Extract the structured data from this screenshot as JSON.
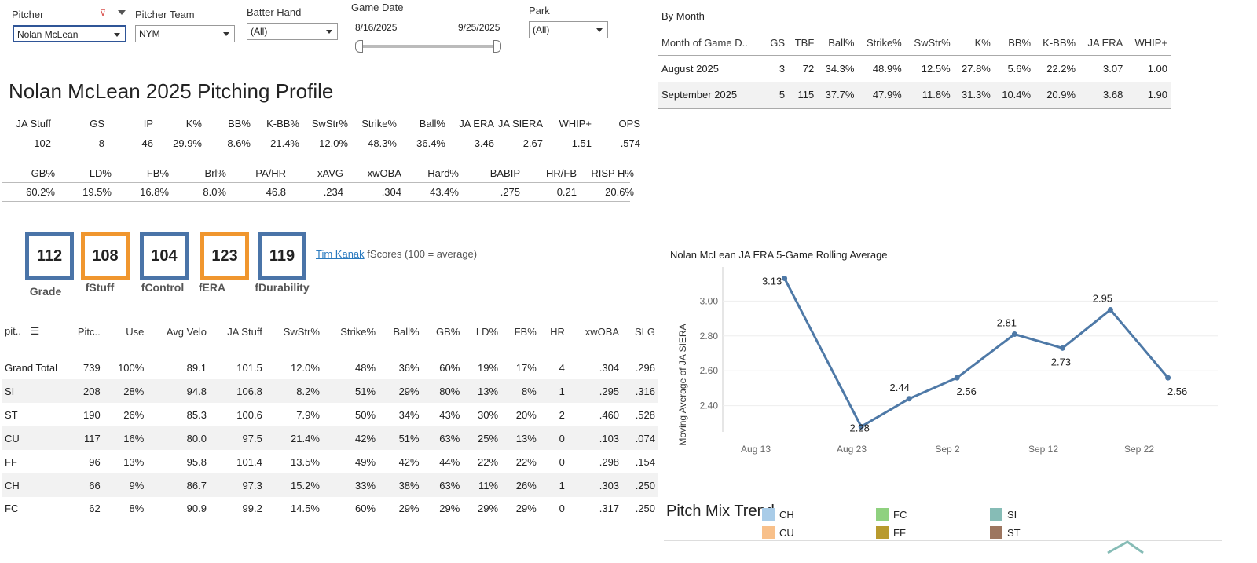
{
  "filters": {
    "pitcher_label": "Pitcher",
    "pitcher_value": "Nolan McLean",
    "team_label": "Pitcher Team",
    "team_value": "NYM",
    "batter_hand_label": "Batter Hand",
    "batter_hand_value": "(All)",
    "game_date_label": "Game Date",
    "date_start": "8/16/2025",
    "date_end": "9/25/2025",
    "park_label": "Park",
    "park_value": "(All)"
  },
  "page_title": "Nolan McLean 2025 Pitching Profile",
  "summary1": {
    "headers": [
      "JA Stuff",
      "GS",
      "IP",
      "K%",
      "BB%",
      "K-BB%",
      "SwStr%",
      "Strike%",
      "Ball%",
      "JA ERA",
      "JA SIERA",
      "WHIP+",
      "OPS"
    ],
    "values": [
      "102",
      "8",
      "46",
      "29.9%",
      "8.6%",
      "21.4%",
      "12.0%",
      "48.3%",
      "36.4%",
      "3.46",
      "2.67",
      "1.51",
      ".574"
    ]
  },
  "summary2": {
    "headers": [
      "GB%",
      "LD%",
      "FB%",
      "Brl%",
      "PA/HR",
      "xAVG",
      "xwOBA",
      "Hard%",
      "BABIP",
      "HR/FB",
      "RISP H%"
    ],
    "values": [
      "60.2%",
      "19.5%",
      "16.8%",
      "8.0%",
      "46.8",
      ".234",
      ".304",
      "43.4%",
      ".275",
      "0.21",
      "20.6%"
    ]
  },
  "scores": [
    {
      "value": "112",
      "label": "Grade"
    },
    {
      "value": "108",
      "label": "fStuff"
    },
    {
      "value": "104",
      "label": "fControl"
    },
    {
      "value": "123",
      "label": "fERA"
    },
    {
      "value": "119",
      "label": "fDurability"
    }
  ],
  "attribution": {
    "link": "Tim Kanak",
    "text": "fScores (100 = average)"
  },
  "pitch_table": {
    "headers": [
      "pit..",
      "Pitc..",
      "Use",
      "Avg Velo",
      "JA Stuff",
      "SwStr%",
      "Strike%",
      "Ball%",
      "GB%",
      "LD%",
      "FB%",
      "HR",
      "xwOBA",
      "SLG"
    ],
    "rows": [
      [
        "Grand Total",
        "739",
        "100%",
        "89.1",
        "101.5",
        "12.0%",
        "48%",
        "36%",
        "60%",
        "19%",
        "17%",
        "4",
        ".304",
        ".296"
      ],
      [
        "SI",
        "208",
        "28%",
        "94.8",
        "106.8",
        "8.2%",
        "51%",
        "29%",
        "80%",
        "13%",
        "8%",
        "1",
        ".295",
        ".316"
      ],
      [
        "ST",
        "190",
        "26%",
        "85.3",
        "100.6",
        "7.9%",
        "50%",
        "34%",
        "43%",
        "30%",
        "20%",
        "2",
        ".460",
        ".528"
      ],
      [
        "CU",
        "117",
        "16%",
        "80.0",
        "97.5",
        "21.4%",
        "42%",
        "51%",
        "63%",
        "25%",
        "13%",
        "0",
        ".103",
        ".074"
      ],
      [
        "FF",
        "96",
        "13%",
        "95.8",
        "101.4",
        "13.5%",
        "49%",
        "42%",
        "44%",
        "22%",
        "22%",
        "0",
        ".298",
        ".154"
      ],
      [
        "CH",
        "66",
        "9%",
        "86.7",
        "97.3",
        "15.2%",
        "33%",
        "38%",
        "63%",
        "11%",
        "26%",
        "1",
        ".303",
        ".250"
      ],
      [
        "FC",
        "62",
        "8%",
        "90.9",
        "99.2",
        "14.5%",
        "60%",
        "29%",
        "29%",
        "29%",
        "29%",
        "0",
        ".317",
        ".250"
      ]
    ]
  },
  "by_month": {
    "title": "By Month",
    "headers": [
      "Month of Game D..",
      "GS",
      "TBF",
      "Ball%",
      "Strike%",
      "SwStr%",
      "K%",
      "BB%",
      "K-BB%",
      "JA ERA",
      "WHIP+"
    ],
    "rows": [
      [
        "August 2025",
        "3",
        "72",
        "34.3%",
        "48.9%",
        "12.5%",
        "27.8%",
        "5.6%",
        "22.2%",
        "3.07",
        "1.00"
      ],
      [
        "September 2025",
        "5",
        "115",
        "37.7%",
        "47.9%",
        "11.8%",
        "31.3%",
        "10.4%",
        "20.9%",
        "3.68",
        "1.90"
      ]
    ]
  },
  "legend": {
    "title": "Pitch Mix Trend",
    "items": [
      {
        "label": "CH",
        "color": "#a9cce8"
      },
      {
        "label": "FC",
        "color": "#8fd17f"
      },
      {
        "label": "SI",
        "color": "#86bcb6"
      },
      {
        "label": "CU",
        "color": "#f8c08a"
      },
      {
        "label": "FF",
        "color": "#b89a2e"
      },
      {
        "label": "ST",
        "color": "#9d7660"
      }
    ]
  },
  "chart_data": {
    "type": "line",
    "title": "Nolan McLean JA ERA 5-Game Rolling Average",
    "ylabel": "Moving Average of JA SIERA",
    "xlabel": "",
    "x": [
      "Aug 16",
      "Aug 24",
      "Aug 29",
      "Sep 3",
      "Sep 9",
      "Sep 14",
      "Sep 19",
      "Sep 25"
    ],
    "values": [
      3.13,
      2.28,
      2.44,
      2.56,
      2.81,
      2.73,
      2.95,
      2.56
    ],
    "x_ticks": [
      "Aug 13",
      "Aug 23",
      "Sep 2",
      "Sep 12",
      "Sep 22"
    ],
    "y_ticks": [
      "2.40",
      "2.60",
      "2.80",
      "3.00"
    ],
    "ylim": [
      2.25,
      3.15
    ],
    "color": "#4e79a7"
  }
}
